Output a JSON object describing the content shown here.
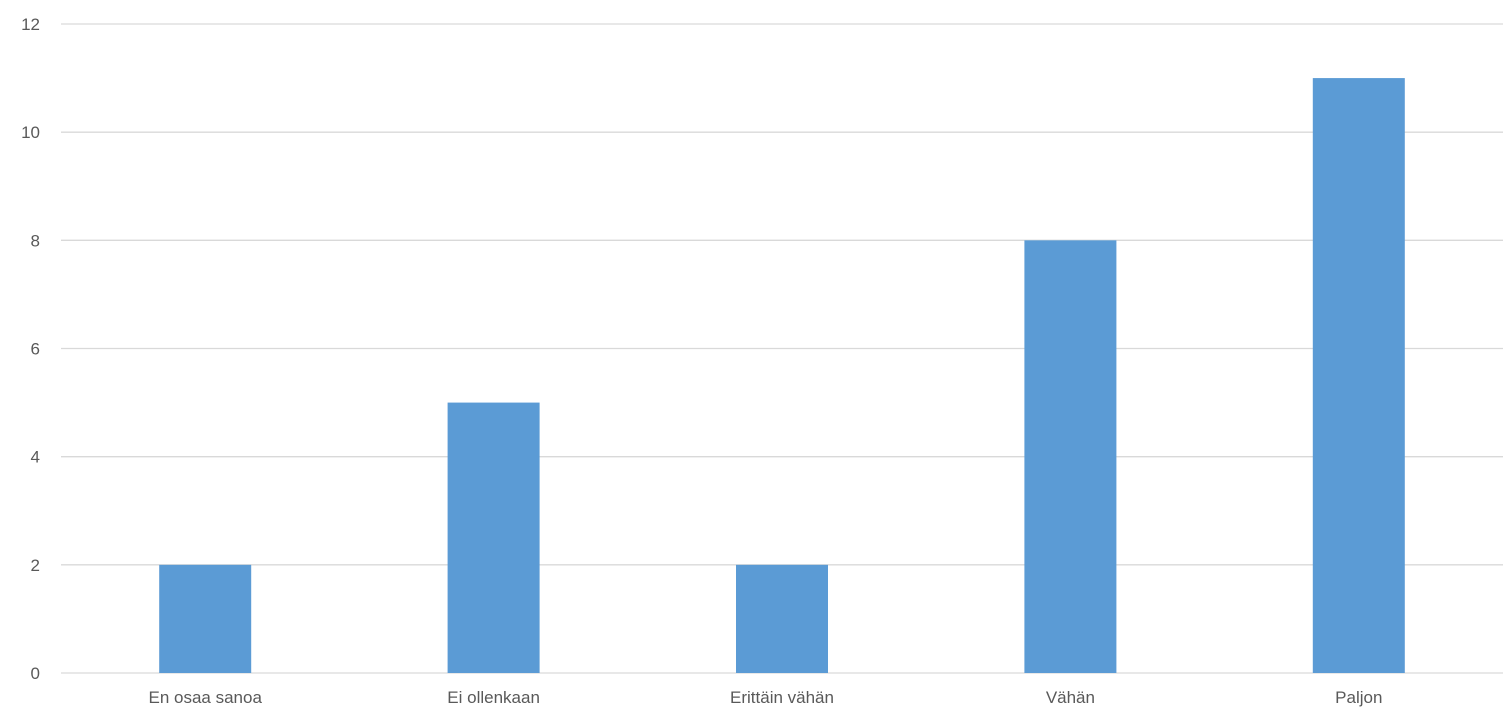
{
  "chart_data": {
    "type": "bar",
    "title": "",
    "xlabel": "",
    "ylabel": "",
    "categories": [
      "En osaa sanoa",
      "Ei ollenkaan",
      "Erittäin vähän",
      "Vähän",
      "Paljon"
    ],
    "values": [
      2,
      5,
      2,
      8,
      11
    ],
    "ylim": [
      0,
      12
    ],
    "yticks": [
      0,
      2,
      4,
      6,
      8,
      10,
      12
    ],
    "grid": true,
    "legend": "none",
    "colors": {
      "bar": "#5b9bd5",
      "grid": "#d9d9d9",
      "text": "#595959"
    }
  }
}
